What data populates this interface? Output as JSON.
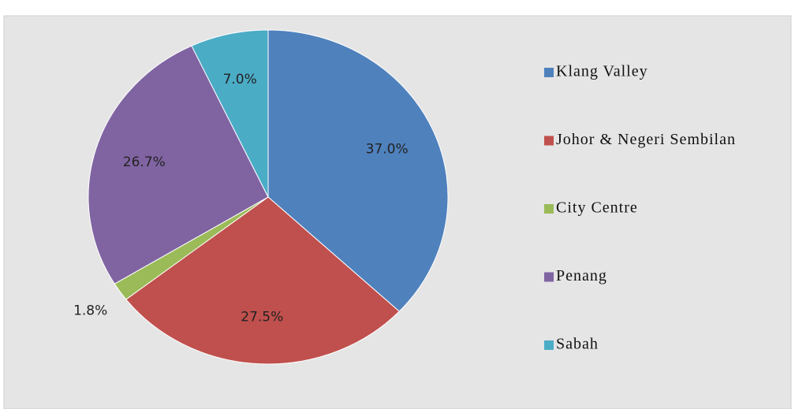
{
  "chart_data": {
    "type": "pie",
    "categories": [
      "Klang Valley",
      "Johor & Negeri Sembilan",
      "City Centre",
      "Penang",
      "Sabah"
    ],
    "values": [
      37.0,
      27.5,
      1.8,
      26.7,
      7.0
    ],
    "value_labels": [
      "37.0%",
      "27.5%",
      "1.8%",
      "26.7%",
      "7.0%"
    ],
    "colors": [
      "#4f81bd",
      "#c0504d",
      "#9bbb59",
      "#8064a2",
      "#4bacc6"
    ],
    "legend": "right"
  }
}
